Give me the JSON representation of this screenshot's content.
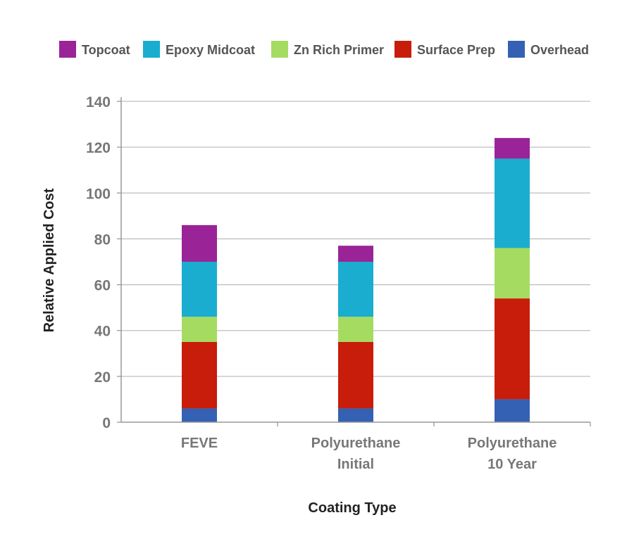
{
  "chart_data": {
    "type": "bar",
    "stacked": true,
    "categories": [
      [
        "FEVE"
      ],
      [
        "Polyurethane",
        "Initial"
      ],
      [
        "Polyurethane",
        "10 Year"
      ]
    ],
    "series": [
      {
        "name": "Overhead",
        "color": "#3461b3",
        "values": [
          6,
          6,
          10
        ]
      },
      {
        "name": "Surface Prep",
        "color": "#c81d0a",
        "values": [
          29,
          29,
          44
        ]
      },
      {
        "name": "Zn Rich Primer",
        "color": "#a6db61",
        "values": [
          11,
          11,
          22
        ]
      },
      {
        "name": "Epoxy Midcoat",
        "color": "#1aadcf",
        "values": [
          24,
          24,
          39
        ]
      },
      {
        "name": "Topcoat",
        "color": "#9b2398",
        "values": [
          16,
          7,
          9
        ]
      }
    ],
    "legend_order": [
      "Topcoat",
      "Epoxy Midcoat",
      "Zn Rich Primer",
      "Surface Prep",
      "Overhead"
    ],
    "legend_position": "top",
    "xlabel": "Coating Type",
    "ylabel": "Relative Applied Cost",
    "ylim": [
      0,
      140
    ],
    "yticks": [
      0,
      20,
      40,
      60,
      80,
      100,
      120,
      140
    ],
    "grid": true
  }
}
